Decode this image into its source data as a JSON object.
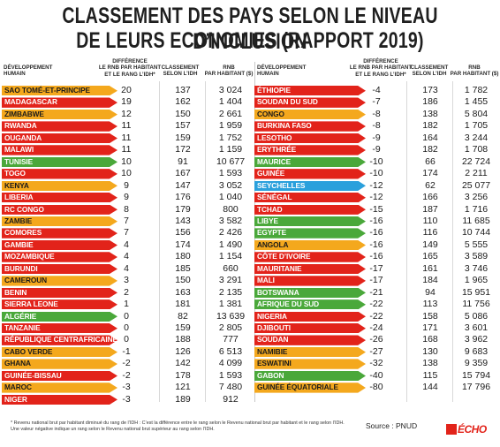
{
  "title_line1": "CLASSEMENT DES PAYS SELON LE NIVEAU D’INCLUSION",
  "title_line2": "DE LEURS ECONOMIES (RAPPORT 2019)",
  "headers": {
    "country_line1": "DÉVELOPPEMENT",
    "country_line2": "HUMAIN",
    "diff_line1": "DIFFÉRENCE",
    "diff_line2": "LE RNB PAR HABITANT",
    "diff_line3": "ET LE RANG L’IDH*",
    "rank_line1": "CLASSEMENT",
    "rank_line2": "SELON L’IDH",
    "rnb_line1": "RNB",
    "rnb_line2": "PAR HABITANT ($)"
  },
  "colors": {
    "orange": "#f4a81d",
    "red": "#e2231a",
    "green": "#4aa83a",
    "blue": "#2aa0dc"
  },
  "chart_data": {
    "type": "table",
    "columns": [
      "Pays",
      "Différence le RNB par habitant et le rang l'IDH",
      "Classement selon l'IDH",
      "RNB par habitant ($)"
    ],
    "left": [
      {
        "country": "SAO TOMÉ-ET-PRINCIPE",
        "diff": "20",
        "rank": "137",
        "rnb": "3 024",
        "color": "orange"
      },
      {
        "country": "MADAGASCAR",
        "diff": "19",
        "rank": "162",
        "rnb": "1 404",
        "color": "red"
      },
      {
        "country": "ZIMBABWE",
        "diff": "12",
        "rank": "150",
        "rnb": "2 661",
        "color": "orange"
      },
      {
        "country": "RWANDA",
        "diff": "11",
        "rank": "157",
        "rnb": "1 959",
        "color": "red"
      },
      {
        "country": "OUGANDA",
        "diff": "11",
        "rank": "159",
        "rnb": "1 752",
        "color": "red"
      },
      {
        "country": "MALAWI",
        "diff": "11",
        "rank": "172",
        "rnb": "1 159",
        "color": "red"
      },
      {
        "country": "TUNISIE",
        "diff": "10",
        "rank": "91",
        "rnb": "10 677",
        "color": "green"
      },
      {
        "country": "TOGO",
        "diff": "10",
        "rank": "167",
        "rnb": "1 593",
        "color": "red"
      },
      {
        "country": "KENYA",
        "diff": "9",
        "rank": "147",
        "rnb": "3 052",
        "color": "orange"
      },
      {
        "country": "LIBERIA",
        "diff": "9",
        "rank": "176",
        "rnb": "1 040",
        "color": "red"
      },
      {
        "country": "RC CONGO",
        "diff": "8",
        "rank": "179",
        "rnb": "800",
        "color": "red"
      },
      {
        "country": "ZAMBIE",
        "diff": "7",
        "rank": "143",
        "rnb": "3 582",
        "color": "orange"
      },
      {
        "country": "COMORES",
        "diff": "7",
        "rank": "156",
        "rnb": "2 426",
        "color": "red"
      },
      {
        "country": "GAMBIE",
        "diff": "4",
        "rank": "174",
        "rnb": "1 490",
        "color": "red"
      },
      {
        "country": "MOZAMBIQUE",
        "diff": "4",
        "rank": "180",
        "rnb": "1 154",
        "color": "red"
      },
      {
        "country": "BURUNDI",
        "diff": "4",
        "rank": "185",
        "rnb": "660",
        "color": "red"
      },
      {
        "country": "CAMEROUN",
        "diff": "3",
        "rank": "150",
        "rnb": "3 291",
        "color": "orange"
      },
      {
        "country": "BENIN",
        "diff": "2",
        "rank": "163",
        "rnb": "2 135",
        "color": "red"
      },
      {
        "country": "SIERRA LEONE",
        "diff": "1",
        "rank": "181",
        "rnb": "1 381",
        "color": "red"
      },
      {
        "country": "ALGÉRIE",
        "diff": "0",
        "rank": "82",
        "rnb": "13 639",
        "color": "green"
      },
      {
        "country": "TANZANIE",
        "diff": "0",
        "rank": "159",
        "rnb": "2 805",
        "color": "red"
      },
      {
        "country": "RÉPUBLIQUE CENTRAFRICAINE",
        "diff": "0",
        "rank": "188",
        "rnb": "777",
        "color": "red"
      },
      {
        "country": "CABO VERDE",
        "diff": "-1",
        "rank": "126",
        "rnb": "6 513",
        "color": "orange"
      },
      {
        "country": "GHANA",
        "diff": "-2",
        "rank": "142",
        "rnb": "4 099",
        "color": "orange"
      },
      {
        "country": "GUINÉE-BISSAU",
        "diff": "-2",
        "rank": "178",
        "rnb": "1 593",
        "color": "red"
      },
      {
        "country": "MAROC",
        "diff": "-3",
        "rank": "121",
        "rnb": "7 480",
        "color": "orange"
      },
      {
        "country": "NIGER",
        "diff": "-3",
        "rank": "189",
        "rnb": "912",
        "color": "red"
      }
    ],
    "right": [
      {
        "country": "ÉTHIOPIE",
        "diff": "-4",
        "rank": "173",
        "rnb": "1 782",
        "color": "red"
      },
      {
        "country": "SOUDAN DU SUD",
        "diff": "-7",
        "rank": "186",
        "rnb": "1 455",
        "color": "red"
      },
      {
        "country": "CONGO",
        "diff": "-8",
        "rank": "138",
        "rnb": "5 804",
        "color": "orange"
      },
      {
        "country": "BURKINA FASO",
        "diff": "-8",
        "rank": "182",
        "rnb": "1 705",
        "color": "red"
      },
      {
        "country": "LESOTHO",
        "diff": "-9",
        "rank": "164",
        "rnb": "3 244",
        "color": "red"
      },
      {
        "country": "ERYTHRÉE",
        "diff": "-9",
        "rank": "182",
        "rnb": "1 708",
        "color": "red"
      },
      {
        "country": "MAURICE",
        "diff": "-10",
        "rank": "66",
        "rnb": "22 724",
        "color": "green"
      },
      {
        "country": "GUINÉE",
        "diff": "-10",
        "rank": "174",
        "rnb": "2 211",
        "color": "red"
      },
      {
        "country": "SEYCHELLES",
        "diff": "-12",
        "rank": "62",
        "rnb": "25 077",
        "color": "blue"
      },
      {
        "country": "SÉNÉGAL",
        "diff": "-12",
        "rank": "166",
        "rnb": "3 256",
        "color": "red"
      },
      {
        "country": "TCHAD",
        "diff": "-15",
        "rank": "187",
        "rnb": "1 716",
        "color": "red"
      },
      {
        "country": "LIBYE",
        "diff": "-16",
        "rank": "110",
        "rnb": "11 685",
        "color": "green"
      },
      {
        "country": "EGYPTE",
        "diff": "-16",
        "rank": "116",
        "rnb": "10 744",
        "color": "green"
      },
      {
        "country": "ANGOLA",
        "diff": "-16",
        "rank": "149",
        "rnb": "5 555",
        "color": "orange"
      },
      {
        "country": "CÔTE D’IVOIRE",
        "diff": "-16",
        "rank": "165",
        "rnb": "3 589",
        "color": "red"
      },
      {
        "country": "MAURITANIE",
        "diff": "-17",
        "rank": "161",
        "rnb": "3 746",
        "color": "red"
      },
      {
        "country": "MALI",
        "diff": "-17",
        "rank": "184",
        "rnb": "1 965",
        "color": "red"
      },
      {
        "country": "BOTSWANA",
        "diff": "-21",
        "rank": "94",
        "rnb": "15 951",
        "color": "green"
      },
      {
        "country": "AFRIQUE DU SUD",
        "diff": "-22",
        "rank": "113",
        "rnb": "11 756",
        "color": "green"
      },
      {
        "country": "NIGERIA",
        "diff": "-22",
        "rank": "158",
        "rnb": "5 086",
        "color": "red"
      },
      {
        "country": "DJIBOUTI",
        "diff": "-24",
        "rank": "171",
        "rnb": "3 601",
        "color": "red"
      },
      {
        "country": "SOUDAN",
        "diff": "-26",
        "rank": "168",
        "rnb": "3 962",
        "color": "red"
      },
      {
        "country": "NAMIBIE",
        "diff": "-27",
        "rank": "130",
        "rnb": "9 683",
        "color": "orange"
      },
      {
        "country": "ESWATINI",
        "diff": "-32",
        "rank": "138",
        "rnb": "9 359",
        "color": "orange"
      },
      {
        "country": "GABON",
        "diff": "-40",
        "rank": "115",
        "rnb": "15 794",
        "color": "green"
      },
      {
        "country": "GUINÉE ÉQUATORIALE",
        "diff": "-80",
        "rank": "144",
        "rnb": "17 796",
        "color": "orange"
      }
    ]
  },
  "footnote": "* Revenu national brut par habitant diminué du rang de l’IDH : C’est la différence entre le rang selon le Revenu national brut par habitant et le rang selon l’IDH. Une valeur négative indique un rang selon le Revenu national brut supérieur au rang selon l’IDH.",
  "source": "Source : PNUD",
  "logo_text": "ÉCHO"
}
